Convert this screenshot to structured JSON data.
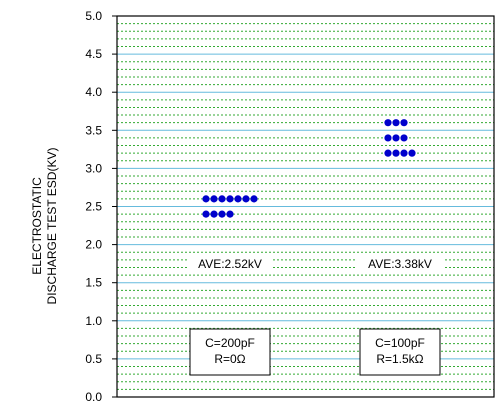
{
  "chart_data": {
    "type": "scatter",
    "title": "",
    "xlabel": "",
    "ylabel": [
      "ELECTROSTATIC",
      "DISCHARGE TEST ESD(KV)"
    ],
    "ylim": [
      0.0,
      5.0
    ],
    "yticks": [
      "0.0",
      "0.5",
      "1.0",
      "1.5",
      "2.0",
      "2.5",
      "3.0",
      "3.5",
      "4.0",
      "4.5",
      "5.0"
    ],
    "grid": true,
    "colors": {
      "points": "#0000cc",
      "major_grid": "#66bbdd",
      "minor_grid": "#33aa33",
      "frame": "#000000"
    },
    "groups": [
      {
        "condition": [
          "C=200pF",
          "R=0Ω"
        ],
        "average_label": "AVE:2.52kV",
        "rows": [
          {
            "y": 2.6,
            "count": 7
          },
          {
            "y": 2.4,
            "count": 4
          }
        ]
      },
      {
        "condition": [
          "C=100pF",
          "R=1.5kΩ"
        ],
        "average_label": "AVE:3.38kV",
        "rows": [
          {
            "y": 3.6,
            "count": 3
          },
          {
            "y": 3.4,
            "count": 3
          },
          {
            "y": 3.2,
            "count": 4
          }
        ]
      }
    ]
  }
}
